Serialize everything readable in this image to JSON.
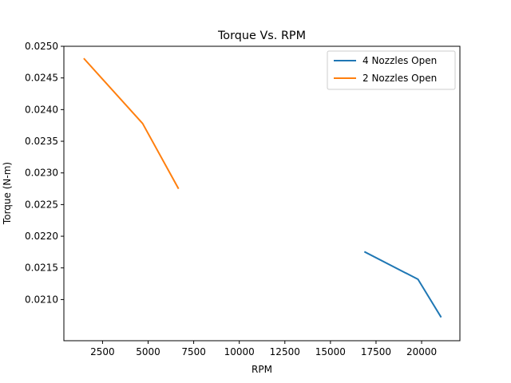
{
  "chart_data": {
    "type": "line",
    "title": "Torque Vs. RPM",
    "xlabel": "RPM",
    "ylabel": "Torque (N-m)",
    "xlim": [
      380,
      22100
    ],
    "ylim": [
      0.02035,
      0.025
    ],
    "xticks": [
      2500,
      5000,
      7500,
      10000,
      12500,
      15000,
      17500,
      20000
    ],
    "xtick_labels": [
      "2500",
      "5000",
      "7500",
      "10000",
      "12500",
      "15000",
      "17500",
      "20000"
    ],
    "yticks": [
      0.021,
      0.0215,
      0.022,
      0.0225,
      0.023,
      0.0235,
      0.024,
      0.0245,
      0.025
    ],
    "ytick_labels": [
      "0.0210",
      "0.0215",
      "0.0220",
      "0.0225",
      "0.0230",
      "0.0235",
      "0.0240",
      "0.0245",
      "0.0250"
    ],
    "grid": false,
    "legend_position": "upper right",
    "series": [
      {
        "name": "4 Nozzles Open",
        "color": "#1f77b4",
        "x": [
          16900,
          19800,
          21050
        ],
        "y": [
          0.02175,
          0.02132,
          0.02073
        ]
      },
      {
        "name": "2 Nozzles Open",
        "color": "#ff7f0e",
        "x": [
          1500,
          4700,
          6650
        ],
        "y": [
          0.0248,
          0.02378,
          0.02276
        ]
      }
    ]
  }
}
